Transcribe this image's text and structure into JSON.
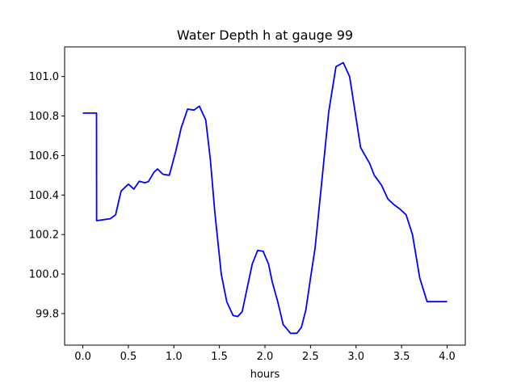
{
  "chart_data": {
    "type": "line",
    "title": "Water Depth h at gauge 99",
    "xlabel": "hours",
    "ylabel": "",
    "xlim": [
      -0.2,
      4.2
    ],
    "ylim": [
      99.64,
      101.15
    ],
    "xticks": [
      0.0,
      0.5,
      1.0,
      1.5,
      2.0,
      2.5,
      3.0,
      3.5,
      4.0
    ],
    "xtick_labels": [
      "0.0",
      "0.5",
      "1.0",
      "1.5",
      "2.0",
      "2.5",
      "3.0",
      "3.5",
      "4.0"
    ],
    "yticks": [
      99.8,
      100.0,
      100.2,
      100.4,
      100.6,
      100.8,
      101.0
    ],
    "ytick_labels": [
      "99.8",
      "100.0",
      "100.2",
      "100.4",
      "100.6",
      "100.8",
      "101.0"
    ],
    "grid": false,
    "series": [
      {
        "color": "#0000ff",
        "x": [
          0.0,
          0.15,
          0.151,
          0.3,
          0.36,
          0.42,
          0.5,
          0.56,
          0.62,
          0.68,
          0.72,
          0.78,
          0.82,
          0.88,
          0.95,
          1.02,
          1.08,
          1.15,
          1.22,
          1.28,
          1.35,
          1.4,
          1.45,
          1.52,
          1.58,
          1.65,
          1.7,
          1.75,
          1.8,
          1.86,
          1.92,
          1.98,
          2.04,
          2.08,
          2.14,
          2.2,
          2.28,
          2.35,
          2.4,
          2.45,
          2.5,
          2.55,
          2.62,
          2.7,
          2.78,
          2.86,
          2.93,
          2.98,
          3.02,
          3.05,
          3.1,
          3.15,
          3.2,
          3.28,
          3.35,
          3.42,
          3.48,
          3.55,
          3.62,
          3.7,
          3.78,
          3.85,
          3.9,
          3.95,
          4.0
        ],
        "y": [
          100.815,
          100.815,
          100.27,
          100.28,
          100.3,
          100.42,
          100.455,
          100.43,
          100.47,
          100.462,
          100.468,
          100.515,
          100.532,
          100.505,
          100.5,
          100.62,
          100.74,
          100.835,
          100.83,
          100.85,
          100.78,
          100.58,
          100.31,
          100.0,
          99.86,
          99.79,
          99.785,
          99.81,
          99.92,
          100.05,
          100.12,
          100.115,
          100.05,
          99.96,
          99.86,
          99.745,
          99.7,
          99.7,
          99.73,
          99.82,
          99.98,
          100.13,
          100.45,
          100.82,
          101.05,
          101.07,
          101.0,
          100.85,
          100.73,
          100.64,
          100.6,
          100.56,
          100.5,
          100.45,
          100.38,
          100.35,
          100.33,
          100.3,
          100.2,
          99.98,
          99.86,
          99.86,
          99.86,
          99.86,
          99.86
        ]
      }
    ]
  }
}
